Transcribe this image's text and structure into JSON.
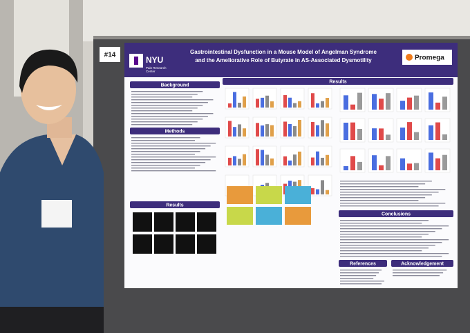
{
  "poster": {
    "number": "#14",
    "logo": "NYU",
    "center_lines": [
      "Pain Research",
      "Center"
    ],
    "title_lines": [
      "Gastrointestinal Dysfunction in a Mouse Model of Angelman Syndrome",
      "and the Ameliorative Role of Butyrate in AS-Associated Dysmotility"
    ],
    "sponsor": "Promega",
    "sections": {
      "background": "Background",
      "methods": "Methods",
      "results_left": "Results",
      "results_right": "Results",
      "conclusions": "Conclusions",
      "references": "References",
      "acknowledgement": "Acknowledgement"
    }
  }
}
